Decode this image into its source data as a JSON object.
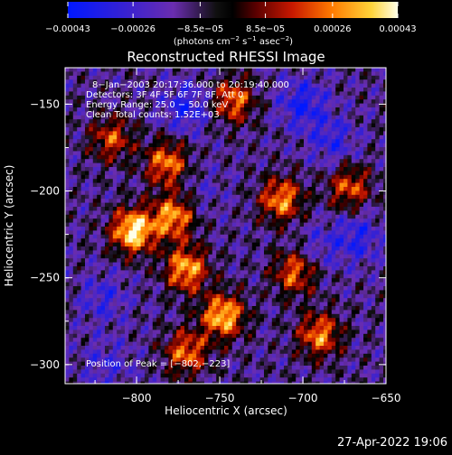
{
  "chart_data": {
    "type": "heatmap",
    "title": "Reconstructed RHESSI Image",
    "xlabel": "Heliocentric X (arcsec)",
    "ylabel": "Heliocentric Y (arcsec)",
    "xlim": [
      -843,
      -650
    ],
    "ylim": [
      -311,
      -129
    ],
    "xticks": [
      -800,
      -750,
      -700,
      -650
    ],
    "xtick_labels": [
      "−800",
      "−750",
      "−700",
      "−650"
    ],
    "yticks": [
      -150,
      -200,
      -250,
      -300
    ],
    "ytick_labels": [
      "−150",
      "−200",
      "−250",
      "−300"
    ],
    "colorbar": {
      "range": [
        -0.00043,
        0.00043
      ],
      "ticks": [
        -0.00043,
        -0.00026,
        -8.5e-05,
        8.5e-05,
        0.00026,
        0.00043
      ],
      "tick_labels": [
        "−0.00043",
        "−0.00026",
        "−8.5e−05",
        "8.5e−05",
        "0.00026",
        "0.00043"
      ],
      "unit_main": "(photons cm",
      "unit_exp1": "−2",
      "unit_mid": " s",
      "unit_exp2": "−1",
      "unit_mid2": " asec",
      "unit_exp3": "−2",
      "unit_end": ")"
    },
    "info_lines": [
      "8−Jan−2003 20:17:36.000 to 20:19:40.000",
      "Detectors: 3F 4F 5F 6F 7F 8F, Att 0",
      "Energy Range: 25.0 − 50.0 keV",
      "Clean     Total counts: 1.52E+03"
    ],
    "peak_label": "Position of Peak = [−802,−223]",
    "peak": [
      -802,
      -223
    ],
    "hot_regions": [
      {
        "x": -802,
        "y": -223,
        "value": 0.00043
      },
      {
        "x": -770,
        "y": -245,
        "value": 0.00032
      },
      {
        "x": -748,
        "y": -272,
        "value": 0.00036
      },
      {
        "x": -778,
        "y": -215,
        "value": 0.0003
      },
      {
        "x": -782,
        "y": -184,
        "value": 0.00026
      },
      {
        "x": -713,
        "y": -205,
        "value": 0.00028
      },
      {
        "x": -705,
        "y": -247,
        "value": 0.00022
      },
      {
        "x": -690,
        "y": -283,
        "value": 0.00026
      },
      {
        "x": -742,
        "y": -148,
        "value": 0.00024
      },
      {
        "x": -815,
        "y": -170,
        "value": 0.00018
      },
      {
        "x": -770,
        "y": -293,
        "value": 0.00024
      },
      {
        "x": -672,
        "y": -198,
        "value": 0.0002
      }
    ],
    "cold_regions": [
      {
        "x": -770,
        "y": -152,
        "value": -0.00034
      },
      {
        "x": -700,
        "y": -150,
        "value": -0.00036
      },
      {
        "x": -667,
        "y": -227,
        "value": -0.00032
      },
      {
        "x": -682,
        "y": -171,
        "value": -0.0003
      },
      {
        "x": -820,
        "y": -262,
        "value": -0.00028
      },
      {
        "x": -818,
        "y": -300,
        "value": -0.00026
      },
      {
        "x": -760,
        "y": -200,
        "value": -0.0002
      },
      {
        "x": -690,
        "y": -232,
        "value": -0.00024
      }
    ]
  },
  "footer": {
    "timestamp": "27-Apr-2022 19:06"
  }
}
